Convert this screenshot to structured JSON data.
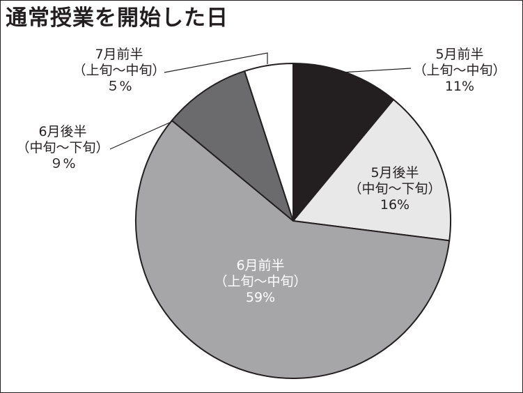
{
  "chart_data": {
    "type": "pie",
    "title": "通常授業を開始した日",
    "slices": [
      {
        "label_lines": [
          "5月前半",
          "（上旬〜中旬）",
          "11%"
        ],
        "value": 11,
        "color": "#231f20",
        "text_color": "#231f20"
      },
      {
        "label_lines": [
          "5月後半",
          "（中旬〜下旬）",
          "16%"
        ],
        "value": 16,
        "color": "#e8e8e8",
        "text_color": "#231f20"
      },
      {
        "label_lines": [
          "6月前半",
          "（上旬〜中旬）",
          "59%"
        ],
        "value": 59,
        "color": "#a6a6a8",
        "text_color": "#ffffff"
      },
      {
        "label_lines": [
          "6月後半",
          "（中旬〜下旬）",
          "９%"
        ],
        "value": 9,
        "color": "#6b6b6d",
        "text_color": "#231f20"
      },
      {
        "label_lines": [
          "7月前半",
          "（上旬〜中旬）",
          "５%"
        ],
        "value": 5,
        "color": "#ffffff",
        "text_color": "#231f20"
      }
    ],
    "legend": "none",
    "start_position": "top",
    "direction": "clockwise"
  }
}
